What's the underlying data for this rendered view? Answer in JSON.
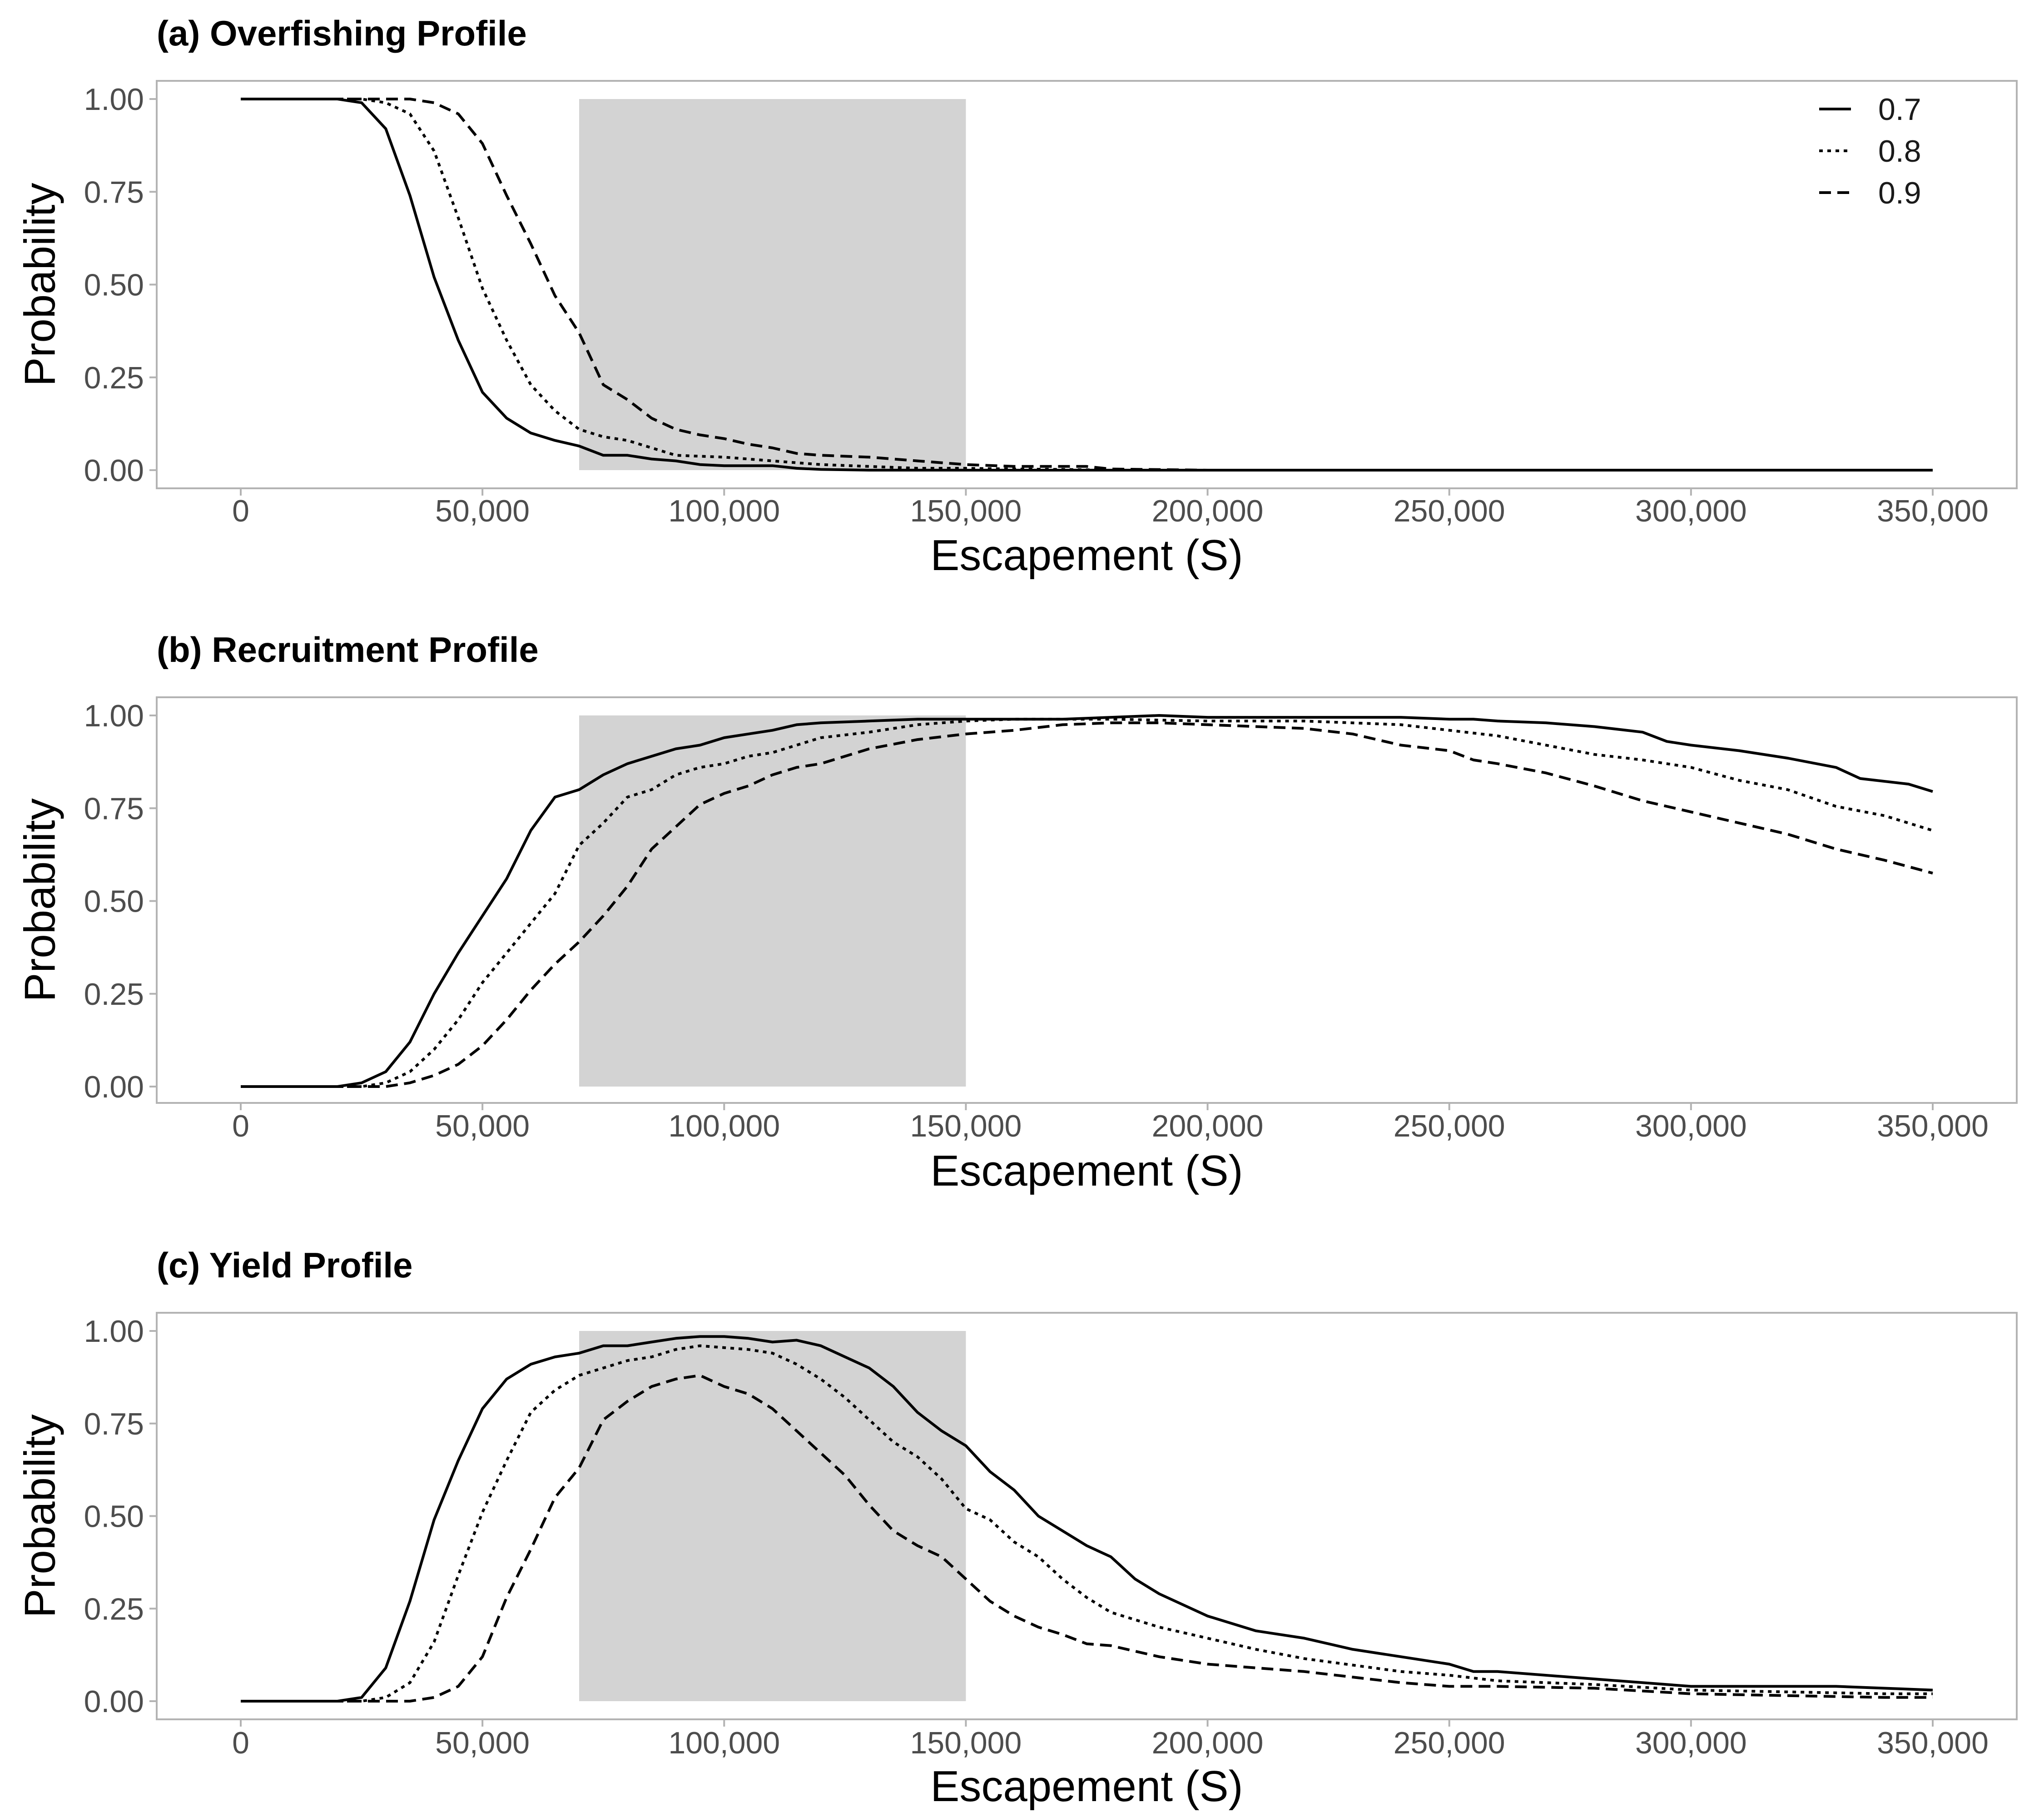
{
  "chart_data": [
    {
      "type": "line",
      "title": "(a) Overfishing Profile",
      "xlabel": "Escapement (S)",
      "ylabel": "Probability",
      "xlim": [
        0,
        350000
      ],
      "ylim": [
        0,
        1
      ],
      "xticks": [
        0,
        50000,
        100000,
        150000,
        200000,
        250000,
        300000,
        350000
      ],
      "xtick_labels": [
        "0",
        "50,000",
        "100,000",
        "150,000",
        "200,000",
        "250,000",
        "300,000",
        "350,000"
      ],
      "yticks": [
        0,
        0.25,
        0.5,
        0.75,
        1
      ],
      "ytick_labels": [
        "0.00",
        "0.25",
        "0.50",
        "0.75",
        "1.00"
      ],
      "grid": false,
      "legend": {
        "show": true,
        "position": "top-right"
      },
      "shaded_region": {
        "x": [
          70000,
          150000
        ],
        "y": [
          0,
          1
        ],
        "color": "#d3d3d3"
      },
      "series": [
        {
          "name": "0.7",
          "dash": "solid",
          "x": [
            0,
            10000,
            20000,
            25000,
            30000,
            35000,
            40000,
            45000,
            50000,
            55000,
            60000,
            65000,
            70000,
            75000,
            80000,
            85000,
            90000,
            95000,
            100000,
            105000,
            110000,
            115000,
            120000,
            130000,
            140000,
            150000,
            200000,
            250000,
            300000,
            350000
          ],
          "y": [
            1,
            1,
            1,
            0.99,
            0.92,
            0.74,
            0.52,
            0.35,
            0.21,
            0.14,
            0.1,
            0.08,
            0.065,
            0.04,
            0.04,
            0.03,
            0.025,
            0.015,
            0.012,
            0.012,
            0.012,
            0.005,
            0.002,
            0,
            0,
            0,
            0,
            0,
            0,
            0
          ]
        },
        {
          "name": "0.8",
          "dash": "dotted",
          "x": [
            0,
            10000,
            20000,
            25000,
            30000,
            35000,
            40000,
            45000,
            50000,
            55000,
            60000,
            65000,
            70000,
            75000,
            80000,
            90000,
            100000,
            110000,
            120000,
            130000,
            140000,
            150000,
            160000,
            170000,
            180000,
            200000,
            250000,
            300000,
            350000
          ],
          "y": [
            1,
            1,
            1,
            1,
            0.99,
            0.96,
            0.86,
            0.68,
            0.49,
            0.35,
            0.23,
            0.16,
            0.11,
            0.09,
            0.08,
            0.04,
            0.035,
            0.025,
            0.015,
            0.01,
            0.005,
            0.005,
            0.003,
            0.002,
            0,
            0,
            0,
            0,
            0
          ],
          "note": ""
        },
        {
          "name": "0.9",
          "dash": "dashed",
          "x": [
            0,
            10000,
            20000,
            25000,
            30000,
            35000,
            40000,
            45000,
            50000,
            55000,
            60000,
            65000,
            70000,
            75000,
            80000,
            85000,
            90000,
            95000,
            100000,
            105000,
            110000,
            115000,
            120000,
            130000,
            140000,
            145000,
            150000,
            160000,
            170000,
            175000,
            180000,
            200000,
            250000,
            300000,
            350000
          ],
          "y": [
            1,
            1,
            1,
            1,
            1,
            1,
            0.99,
            0.96,
            0.88,
            0.74,
            0.61,
            0.47,
            0.37,
            0.23,
            0.19,
            0.14,
            0.11,
            0.095,
            0.085,
            0.07,
            0.06,
            0.045,
            0.04,
            0.035,
            0.025,
            0.02,
            0.015,
            0.01,
            0.01,
            0.01,
            0.003,
            0,
            0,
            0,
            0
          ]
        }
      ]
    },
    {
      "type": "line",
      "title": "(b) Recruitment Profile",
      "xlabel": "Escapement (S)",
      "ylabel": "Probability",
      "xlim": [
        0,
        350000
      ],
      "ylim": [
        0,
        1
      ],
      "xticks": [
        0,
        50000,
        100000,
        150000,
        200000,
        250000,
        300000,
        350000
      ],
      "xtick_labels": [
        "0",
        "50,000",
        "100,000",
        "150,000",
        "200,000",
        "250,000",
        "300,000",
        "350,000"
      ],
      "yticks": [
        0,
        0.25,
        0.5,
        0.75,
        1
      ],
      "ytick_labels": [
        "0.00",
        "0.25",
        "0.50",
        "0.75",
        "1.00"
      ],
      "grid": false,
      "legend": {
        "show": false
      },
      "shaded_region": {
        "x": [
          70000,
          150000
        ],
        "y": [
          0,
          1
        ],
        "color": "#d3d3d3"
      },
      "series": [
        {
          "name": "0.7",
          "dash": "solid",
          "x": [
            0,
            10000,
            20000,
            25000,
            30000,
            35000,
            40000,
            45000,
            50000,
            55000,
            60000,
            65000,
            70000,
            75000,
            80000,
            85000,
            90000,
            95000,
            100000,
            105000,
            110000,
            115000,
            120000,
            130000,
            140000,
            150000,
            160000,
            170000,
            180000,
            190000,
            200000,
            220000,
            240000,
            250000,
            255000,
            260000,
            270000,
            280000,
            290000,
            295000,
            300000,
            310000,
            320000,
            330000,
            335000,
            345000,
            350000
          ],
          "y": [
            0,
            0,
            0,
            0.01,
            0.04,
            0.12,
            0.25,
            0.36,
            0.46,
            0.56,
            0.69,
            0.78,
            0.8,
            0.84,
            0.87,
            0.89,
            0.91,
            0.92,
            0.94,
            0.95,
            0.96,
            0.975,
            0.98,
            0.985,
            0.99,
            0.99,
            0.99,
            0.99,
            0.995,
            1,
            0.995,
            0.995,
            0.995,
            0.99,
            0.99,
            0.985,
            0.98,
            0.97,
            0.955,
            0.93,
            0.92,
            0.905,
            0.885,
            0.86,
            0.83,
            0.815,
            0.795
          ]
        },
        {
          "name": "0.8",
          "dash": "dotted",
          "x": [
            0,
            10000,
            20000,
            25000,
            30000,
            35000,
            40000,
            45000,
            50000,
            55000,
            60000,
            65000,
            70000,
            75000,
            80000,
            85000,
            90000,
            95000,
            100000,
            105000,
            110000,
            120000,
            130000,
            140000,
            150000,
            160000,
            170000,
            180000,
            200000,
            220000,
            240000,
            250000,
            260000,
            270000,
            280000,
            290000,
            300000,
            310000,
            320000,
            330000,
            340000,
            350000
          ],
          "y": [
            0,
            0,
            0,
            0,
            0.01,
            0.04,
            0.1,
            0.18,
            0.28,
            0.36,
            0.44,
            0.52,
            0.65,
            0.71,
            0.78,
            0.8,
            0.84,
            0.86,
            0.87,
            0.89,
            0.9,
            0.94,
            0.955,
            0.975,
            0.985,
            0.99,
            0.99,
            0.99,
            0.985,
            0.985,
            0.975,
            0.96,
            0.945,
            0.92,
            0.895,
            0.88,
            0.86,
            0.825,
            0.8,
            0.755,
            0.73,
            0.69
          ]
        },
        {
          "name": "0.9",
          "dash": "dashed",
          "x": [
            0,
            10000,
            20000,
            25000,
            30000,
            35000,
            40000,
            45000,
            50000,
            55000,
            60000,
            65000,
            70000,
            75000,
            80000,
            85000,
            90000,
            95000,
            100000,
            105000,
            110000,
            115000,
            120000,
            130000,
            140000,
            150000,
            160000,
            170000,
            180000,
            190000,
            200000,
            210000,
            220000,
            230000,
            240000,
            250000,
            255000,
            260000,
            270000,
            280000,
            290000,
            300000,
            310000,
            320000,
            330000,
            340000,
            350000
          ],
          "y": [
            0,
            0,
            0,
            0,
            0,
            0.01,
            0.03,
            0.06,
            0.11,
            0.18,
            0.26,
            0.33,
            0.39,
            0.46,
            0.54,
            0.64,
            0.7,
            0.76,
            0.79,
            0.81,
            0.84,
            0.86,
            0.87,
            0.91,
            0.935,
            0.95,
            0.96,
            0.975,
            0.98,
            0.98,
            0.975,
            0.97,
            0.965,
            0.95,
            0.92,
            0.905,
            0.88,
            0.87,
            0.845,
            0.81,
            0.77,
            0.74,
            0.71,
            0.68,
            0.64,
            0.61,
            0.575
          ]
        }
      ]
    },
    {
      "type": "line",
      "title": "(c) Yield Profile",
      "xlabel": "Escapement (S)",
      "ylabel": "Probability",
      "xlim": [
        0,
        350000
      ],
      "ylim": [
        0,
        1
      ],
      "xticks": [
        0,
        50000,
        100000,
        150000,
        200000,
        250000,
        300000,
        350000
      ],
      "xtick_labels": [
        "0",
        "50,000",
        "100,000",
        "150,000",
        "200,000",
        "250,000",
        "300,000",
        "350,000"
      ],
      "yticks": [
        0,
        0.25,
        0.5,
        0.75,
        1
      ],
      "ytick_labels": [
        "0.00",
        "0.25",
        "0.50",
        "0.75",
        "1.00"
      ],
      "grid": false,
      "legend": {
        "show": false
      },
      "shaded_region": {
        "x": [
          70000,
          150000
        ],
        "y": [
          0,
          1
        ],
        "color": "#d3d3d3"
      },
      "series": [
        {
          "name": "0.7",
          "dash": "solid",
          "x": [
            0,
            10000,
            20000,
            25000,
            30000,
            35000,
            40000,
            45000,
            50000,
            55000,
            60000,
            65000,
            70000,
            75000,
            80000,
            85000,
            90000,
            95000,
            100000,
            105000,
            110000,
            115000,
            120000,
            125000,
            130000,
            135000,
            140000,
            145000,
            150000,
            155000,
            160000,
            165000,
            170000,
            175000,
            180000,
            185000,
            190000,
            200000,
            210000,
            220000,
            230000,
            240000,
            250000,
            255000,
            260000,
            280000,
            300000,
            320000,
            330000,
            340000,
            350000
          ],
          "y": [
            0,
            0,
            0,
            0.01,
            0.09,
            0.27,
            0.49,
            0.65,
            0.79,
            0.87,
            0.91,
            0.93,
            0.94,
            0.96,
            0.96,
            0.97,
            0.98,
            0.985,
            0.985,
            0.98,
            0.97,
            0.975,
            0.96,
            0.93,
            0.9,
            0.85,
            0.78,
            0.73,
            0.69,
            0.62,
            0.57,
            0.5,
            0.46,
            0.42,
            0.39,
            0.33,
            0.29,
            0.23,
            0.19,
            0.17,
            0.14,
            0.12,
            0.1,
            0.08,
            0.08,
            0.06,
            0.04,
            0.04,
            0.04,
            0.035,
            0.03
          ]
        },
        {
          "name": "0.8",
          "dash": "dotted",
          "x": [
            0,
            10000,
            20000,
            25000,
            30000,
            35000,
            40000,
            45000,
            50000,
            55000,
            60000,
            65000,
            70000,
            75000,
            80000,
            85000,
            90000,
            95000,
            100000,
            105000,
            110000,
            115000,
            120000,
            125000,
            130000,
            135000,
            140000,
            145000,
            150000,
            155000,
            160000,
            165000,
            170000,
            175000,
            180000,
            190000,
            200000,
            210000,
            220000,
            240000,
            250000,
            260000,
            280000,
            300000,
            320000,
            340000,
            350000
          ],
          "y": [
            0,
            0,
            0,
            0,
            0.01,
            0.05,
            0.16,
            0.34,
            0.51,
            0.65,
            0.78,
            0.84,
            0.88,
            0.9,
            0.92,
            0.93,
            0.95,
            0.96,
            0.955,
            0.95,
            0.94,
            0.91,
            0.87,
            0.82,
            0.76,
            0.7,
            0.66,
            0.6,
            0.52,
            0.49,
            0.43,
            0.39,
            0.33,
            0.28,
            0.24,
            0.2,
            0.17,
            0.14,
            0.115,
            0.08,
            0.07,
            0.055,
            0.045,
            0.03,
            0.025,
            0.02,
            0.02
          ]
        },
        {
          "name": "0.9",
          "dash": "dashed",
          "x": [
            0,
            10000,
            20000,
            25000,
            30000,
            35000,
            40000,
            45000,
            50000,
            55000,
            60000,
            65000,
            70000,
            75000,
            80000,
            85000,
            90000,
            95000,
            100000,
            105000,
            110000,
            115000,
            120000,
            125000,
            130000,
            135000,
            140000,
            145000,
            150000,
            155000,
            160000,
            165000,
            170000,
            175000,
            180000,
            190000,
            200000,
            210000,
            220000,
            240000,
            250000,
            260000,
            280000,
            300000,
            320000,
            340000,
            350000
          ],
          "y": [
            0,
            0,
            0,
            0,
            0,
            0,
            0.01,
            0.04,
            0.12,
            0.28,
            0.41,
            0.55,
            0.63,
            0.76,
            0.81,
            0.85,
            0.87,
            0.88,
            0.85,
            0.83,
            0.79,
            0.73,
            0.67,
            0.61,
            0.53,
            0.46,
            0.42,
            0.39,
            0.33,
            0.27,
            0.23,
            0.2,
            0.18,
            0.155,
            0.15,
            0.12,
            0.1,
            0.09,
            0.08,
            0.05,
            0.04,
            0.04,
            0.035,
            0.02,
            0.015,
            0.01,
            0.01
          ]
        }
      ]
    }
  ]
}
